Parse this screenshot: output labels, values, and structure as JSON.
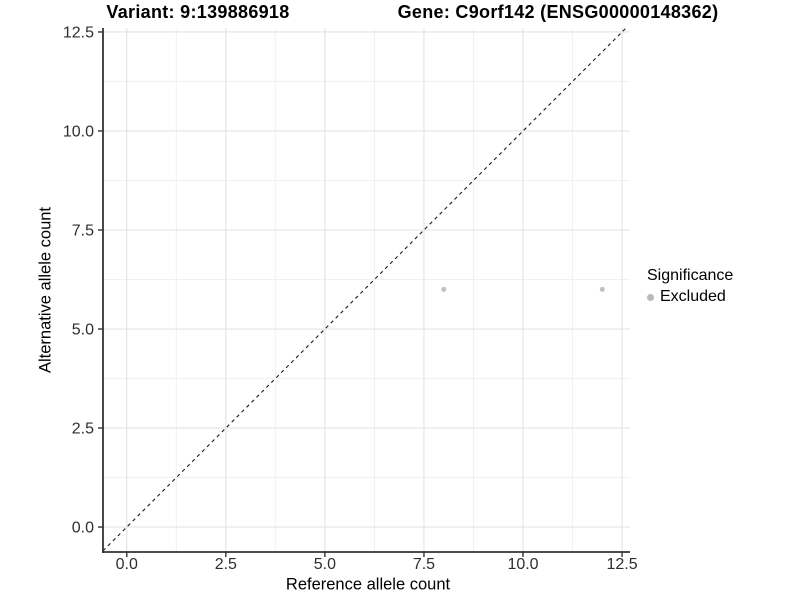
{
  "chart_data": {
    "type": "scatter",
    "title_left": "Variant: 9:139886918",
    "title_right": "Gene: C9orf142 (ENSG00000148362)",
    "xlabel": "Reference allele count",
    "ylabel": "Alternative allele count",
    "x_axis": {
      "ticks": [
        0,
        2.5,
        5,
        7.5,
        10,
        12.5
      ],
      "tick_labels": [
        "0.0",
        "2.5",
        "5.0",
        "7.5",
        "10.0",
        "12.5"
      ],
      "minor_ticks": [
        1.25,
        3.75,
        6.25,
        8.75,
        11.25
      ],
      "range": [
        -0.6,
        12.7
      ]
    },
    "y_axis": {
      "ticks": [
        0,
        2.5,
        5,
        7.5,
        10,
        12.5
      ],
      "tick_labels": [
        "0.0",
        "2.5",
        "5.0",
        "7.5",
        "10.0",
        "12.5"
      ],
      "minor_ticks": [
        1.25,
        3.75,
        6.25,
        8.75,
        11.25
      ],
      "range": [
        -0.63,
        12.6
      ]
    },
    "reference_line": {
      "type": "identity",
      "equation": "y = x",
      "style": "dashed",
      "color": "#1a1a1a"
    },
    "series": [
      {
        "name": "Excluded",
        "color": "#c1c1c1",
        "point_radius": 2.5,
        "points": [
          [
            8,
            6
          ],
          [
            12,
            6
          ]
        ]
      }
    ],
    "legend": {
      "title": "Significance",
      "items": [
        {
          "label": "Excluded",
          "color": "#b9b9b9"
        }
      ]
    },
    "colors": {
      "background": "#ffffff",
      "grid_major": "#e3e3e3",
      "grid_minor": "#f1f1f1",
      "axis_line": "#333333",
      "tick_label": "#2e2e2e"
    }
  }
}
